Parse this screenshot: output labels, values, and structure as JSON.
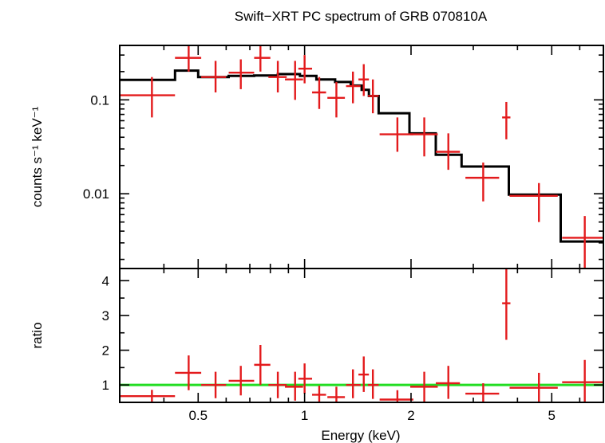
{
  "chart_data": [
    {
      "type": "scatter",
      "title": "Swift−XRT PC spectrum of GRB 070810A",
      "ylabel": "counts s⁻¹ keV⁻¹",
      "xlabel": "",
      "xscale": "log",
      "yscale": "log",
      "xlim": [
        0.3,
        7.0
      ],
      "ylim": [
        0.0016,
        0.38
      ],
      "yticks": [
        {
          "v": 0.01,
          "label": "0.01"
        },
        {
          "v": 0.1,
          "label": "0.1"
        }
      ],
      "data_color": "#e31a1c",
      "model_color": "#000000",
      "data": [
        {
          "x": 0.37,
          "xlo": 0.3,
          "xhi": 0.43,
          "y": 0.112,
          "ylo": 0.065,
          "yhi": 0.175
        },
        {
          "x": 0.47,
          "xlo": 0.43,
          "xhi": 0.51,
          "y": 0.28,
          "ylo": 0.2,
          "yhi": 0.38
        },
        {
          "x": 0.56,
          "xlo": 0.51,
          "xhi": 0.6,
          "y": 0.175,
          "ylo": 0.12,
          "yhi": 0.26
        },
        {
          "x": 0.66,
          "xlo": 0.61,
          "xhi": 0.72,
          "y": 0.195,
          "ylo": 0.13,
          "yhi": 0.27
        },
        {
          "x": 0.75,
          "xlo": 0.72,
          "xhi": 0.8,
          "y": 0.28,
          "ylo": 0.2,
          "yhi": 0.38
        },
        {
          "x": 0.84,
          "xlo": 0.79,
          "xhi": 0.89,
          "y": 0.175,
          "ylo": 0.12,
          "yhi": 0.26
        },
        {
          "x": 0.94,
          "xlo": 0.88,
          "xhi": 0.99,
          "y": 0.165,
          "ylo": 0.1,
          "yhi": 0.26
        },
        {
          "x": 1.0,
          "xlo": 0.96,
          "xhi": 1.05,
          "y": 0.215,
          "ylo": 0.15,
          "yhi": 0.3
        },
        {
          "x": 1.1,
          "xlo": 1.05,
          "xhi": 1.15,
          "y": 0.12,
          "ylo": 0.08,
          "yhi": 0.175
        },
        {
          "x": 1.23,
          "xlo": 1.16,
          "xhi": 1.3,
          "y": 0.105,
          "ylo": 0.065,
          "yhi": 0.155
        },
        {
          "x": 1.37,
          "xlo": 1.31,
          "xhi": 1.44,
          "y": 0.14,
          "ylo": 0.092,
          "yhi": 0.2
        },
        {
          "x": 1.47,
          "xlo": 1.42,
          "xhi": 1.52,
          "y": 0.165,
          "ylo": 0.11,
          "yhi": 0.24
        },
        {
          "x": 1.56,
          "xlo": 1.51,
          "xhi": 1.62,
          "y": 0.11,
          "ylo": 0.072,
          "yhi": 0.165
        },
        {
          "x": 1.83,
          "xlo": 1.63,
          "xhi": 2.03,
          "y": 0.043,
          "ylo": 0.028,
          "yhi": 0.065
        },
        {
          "x": 2.18,
          "xlo": 1.99,
          "xhi": 2.38,
          "y": 0.043,
          "ylo": 0.025,
          "yhi": 0.065
        },
        {
          "x": 2.55,
          "xlo": 2.35,
          "xhi": 2.75,
          "y": 0.028,
          "ylo": 0.018,
          "yhi": 0.044
        },
        {
          "x": 3.2,
          "xlo": 2.85,
          "xhi": 3.55,
          "y": 0.0148,
          "ylo": 0.0083,
          "yhi": 0.0215
        },
        {
          "x": 3.72,
          "xlo": 3.62,
          "xhi": 3.82,
          "y": 0.065,
          "ylo": 0.038,
          "yhi": 0.095
        },
        {
          "x": 4.6,
          "xlo": 3.8,
          "xhi": 5.2,
          "y": 0.0095,
          "ylo": 0.005,
          "yhi": 0.013
        },
        {
          "x": 6.2,
          "xlo": 5.35,
          "xhi": 7.0,
          "y": 0.0034,
          "ylo": 0.0016,
          "yhi": 0.0058
        }
      ],
      "model": [
        {
          "x0": 0.3,
          "x1": 0.43,
          "y": 0.163
        },
        {
          "x0": 0.43,
          "x1": 0.5,
          "y": 0.205
        },
        {
          "x0": 0.5,
          "x1": 0.61,
          "y": 0.175
        },
        {
          "x0": 0.61,
          "x1": 0.72,
          "y": 0.18
        },
        {
          "x0": 0.72,
          "x1": 0.84,
          "y": 0.182
        },
        {
          "x0": 0.84,
          "x1": 0.97,
          "y": 0.188
        },
        {
          "x0": 0.97,
          "x1": 1.08,
          "y": 0.18
        },
        {
          "x0": 1.08,
          "x1": 1.22,
          "y": 0.165
        },
        {
          "x0": 1.22,
          "x1": 1.35,
          "y": 0.155
        },
        {
          "x0": 1.35,
          "x1": 1.45,
          "y": 0.142
        },
        {
          "x0": 1.45,
          "x1": 1.52,
          "y": 0.128
        },
        {
          "x0": 1.52,
          "x1": 1.62,
          "y": 0.11
        },
        {
          "x0": 1.62,
          "x1": 1.98,
          "y": 0.072
        },
        {
          "x0": 1.98,
          "x1": 2.35,
          "y": 0.044
        },
        {
          "x0": 2.35,
          "x1": 2.78,
          "y": 0.026
        },
        {
          "x0": 2.78,
          "x1": 3.78,
          "y": 0.0195
        },
        {
          "x0": 3.78,
          "x1": 5.3,
          "y": 0.0098
        },
        {
          "x0": 5.3,
          "x1": 7.0,
          "y": 0.0031
        }
      ]
    },
    {
      "type": "scatter",
      "ylabel": "ratio",
      "xlabel": "Energy (keV)",
      "xscale": "log",
      "yscale": "linear",
      "xlim": [
        0.3,
        7.0
      ],
      "ylim": [
        0.5,
        4.35
      ],
      "xticks": [
        {
          "v": 0.5,
          "label": "0.5"
        },
        {
          "v": 1,
          "label": "1"
        },
        {
          "v": 2,
          "label": "2"
        },
        {
          "v": 5,
          "label": "5"
        }
      ],
      "yticks": [
        {
          "v": 1,
          "label": "1"
        },
        {
          "v": 2,
          "label": "2"
        },
        {
          "v": 3,
          "label": "3"
        },
        {
          "v": 4,
          "label": "4"
        }
      ],
      "reference_line": 1,
      "reference_color": "#22dd22",
      "data_color": "#e31a1c",
      "data": [
        {
          "x": 0.37,
          "xlo": 0.3,
          "xhi": 0.43,
          "y": 0.68,
          "ylo": 0.5,
          "yhi": 0.86
        },
        {
          "x": 0.47,
          "xlo": 0.43,
          "xhi": 0.51,
          "y": 1.35,
          "ylo": 0.85,
          "yhi": 1.85
        },
        {
          "x": 0.56,
          "xlo": 0.51,
          "xhi": 0.6,
          "y": 1.0,
          "ylo": 0.62,
          "yhi": 1.38
        },
        {
          "x": 0.66,
          "xlo": 0.61,
          "xhi": 0.72,
          "y": 1.12,
          "ylo": 0.7,
          "yhi": 1.55
        },
        {
          "x": 0.75,
          "xlo": 0.72,
          "xhi": 0.8,
          "y": 1.58,
          "ylo": 1.0,
          "yhi": 2.15
        },
        {
          "x": 0.84,
          "xlo": 0.79,
          "xhi": 0.89,
          "y": 1.0,
          "ylo": 0.62,
          "yhi": 1.38
        },
        {
          "x": 0.94,
          "xlo": 0.88,
          "xhi": 0.99,
          "y": 0.95,
          "ylo": 0.55,
          "yhi": 1.38
        },
        {
          "x": 1.0,
          "xlo": 0.96,
          "xhi": 1.05,
          "y": 1.18,
          "ylo": 0.75,
          "yhi": 1.62
        },
        {
          "x": 1.1,
          "xlo": 1.05,
          "xhi": 1.15,
          "y": 0.72,
          "ylo": 0.5,
          "yhi": 0.98
        },
        {
          "x": 1.23,
          "xlo": 1.16,
          "xhi": 1.3,
          "y": 0.65,
          "ylo": 0.5,
          "yhi": 0.95
        },
        {
          "x": 1.37,
          "xlo": 1.31,
          "xhi": 1.44,
          "y": 1.0,
          "ylo": 0.62,
          "yhi": 1.45
        },
        {
          "x": 1.47,
          "xlo": 1.42,
          "xhi": 1.52,
          "y": 1.3,
          "ylo": 0.8,
          "yhi": 1.82
        },
        {
          "x": 1.56,
          "xlo": 1.51,
          "xhi": 1.62,
          "y": 1.0,
          "ylo": 0.6,
          "yhi": 1.45
        },
        {
          "x": 1.83,
          "xlo": 1.63,
          "xhi": 2.03,
          "y": 0.58,
          "ylo": 0.5,
          "yhi": 0.85
        },
        {
          "x": 2.18,
          "xlo": 1.99,
          "xhi": 2.38,
          "y": 0.95,
          "ylo": 0.5,
          "yhi": 1.38
        },
        {
          "x": 2.55,
          "xlo": 2.35,
          "xhi": 2.75,
          "y": 1.05,
          "ylo": 0.6,
          "yhi": 1.55
        },
        {
          "x": 3.2,
          "xlo": 2.85,
          "xhi": 3.55,
          "y": 0.75,
          "ylo": 0.5,
          "yhi": 1.05
        },
        {
          "x": 3.72,
          "xlo": 3.62,
          "xhi": 3.82,
          "y": 3.35,
          "ylo": 2.3,
          "yhi": 4.35
        },
        {
          "x": 4.6,
          "xlo": 3.8,
          "xhi": 5.2,
          "y": 0.92,
          "ylo": 0.5,
          "yhi": 1.35
        },
        {
          "x": 6.2,
          "xlo": 5.35,
          "xhi": 7.0,
          "y": 1.08,
          "ylo": 0.5,
          "yhi": 1.72
        }
      ]
    }
  ]
}
